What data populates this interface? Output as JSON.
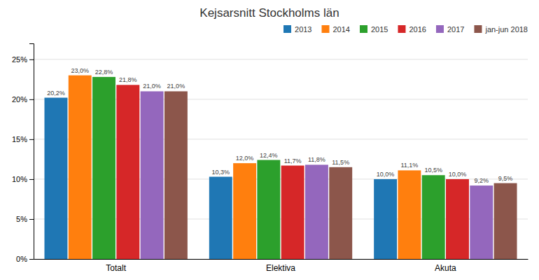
{
  "chart_data": {
    "type": "bar",
    "title": "Kejsarsnitt Stockholms län",
    "categories": [
      "Totalt",
      "Elektiva",
      "Akuta"
    ],
    "series": [
      {
        "name": "2013",
        "values": [
          20.2,
          10.3,
          10.0
        ],
        "value_labels": [
          "20,2%",
          "10,3%",
          "10,0%"
        ]
      },
      {
        "name": "2014",
        "values": [
          23.0,
          12.0,
          11.1
        ],
        "value_labels": [
          "23,0%",
          "12,0%",
          "11,1%"
        ]
      },
      {
        "name": "2015",
        "values": [
          22.8,
          12.4,
          10.5
        ],
        "value_labels": [
          "22,8%",
          "12,4%",
          "10,5%"
        ]
      },
      {
        "name": "2016",
        "values": [
          21.8,
          11.7,
          10.0
        ],
        "value_labels": [
          "21,8%",
          "11,7%",
          "10,0%"
        ]
      },
      {
        "name": "2017",
        "values": [
          21.0,
          11.8,
          9.2
        ],
        "value_labels": [
          "21,0%",
          "11,8%",
          "9,2%"
        ]
      },
      {
        "name": "jan-jun 2018",
        "values": [
          21.0,
          11.5,
          9.5
        ],
        "value_labels": [
          "21,0%",
          "11,5%",
          "9,5%"
        ]
      }
    ],
    "ylim": [
      0,
      27
    ],
    "yticks": [
      {
        "value": 0,
        "label": "0%"
      },
      {
        "value": 5,
        "label": "5%"
      },
      {
        "value": 10,
        "label": "10%"
      },
      {
        "value": 15,
        "label": "15%"
      },
      {
        "value": 20,
        "label": "20%"
      },
      {
        "value": 25,
        "label": "25%"
      }
    ],
    "grid": true,
    "legend": "upper right"
  }
}
